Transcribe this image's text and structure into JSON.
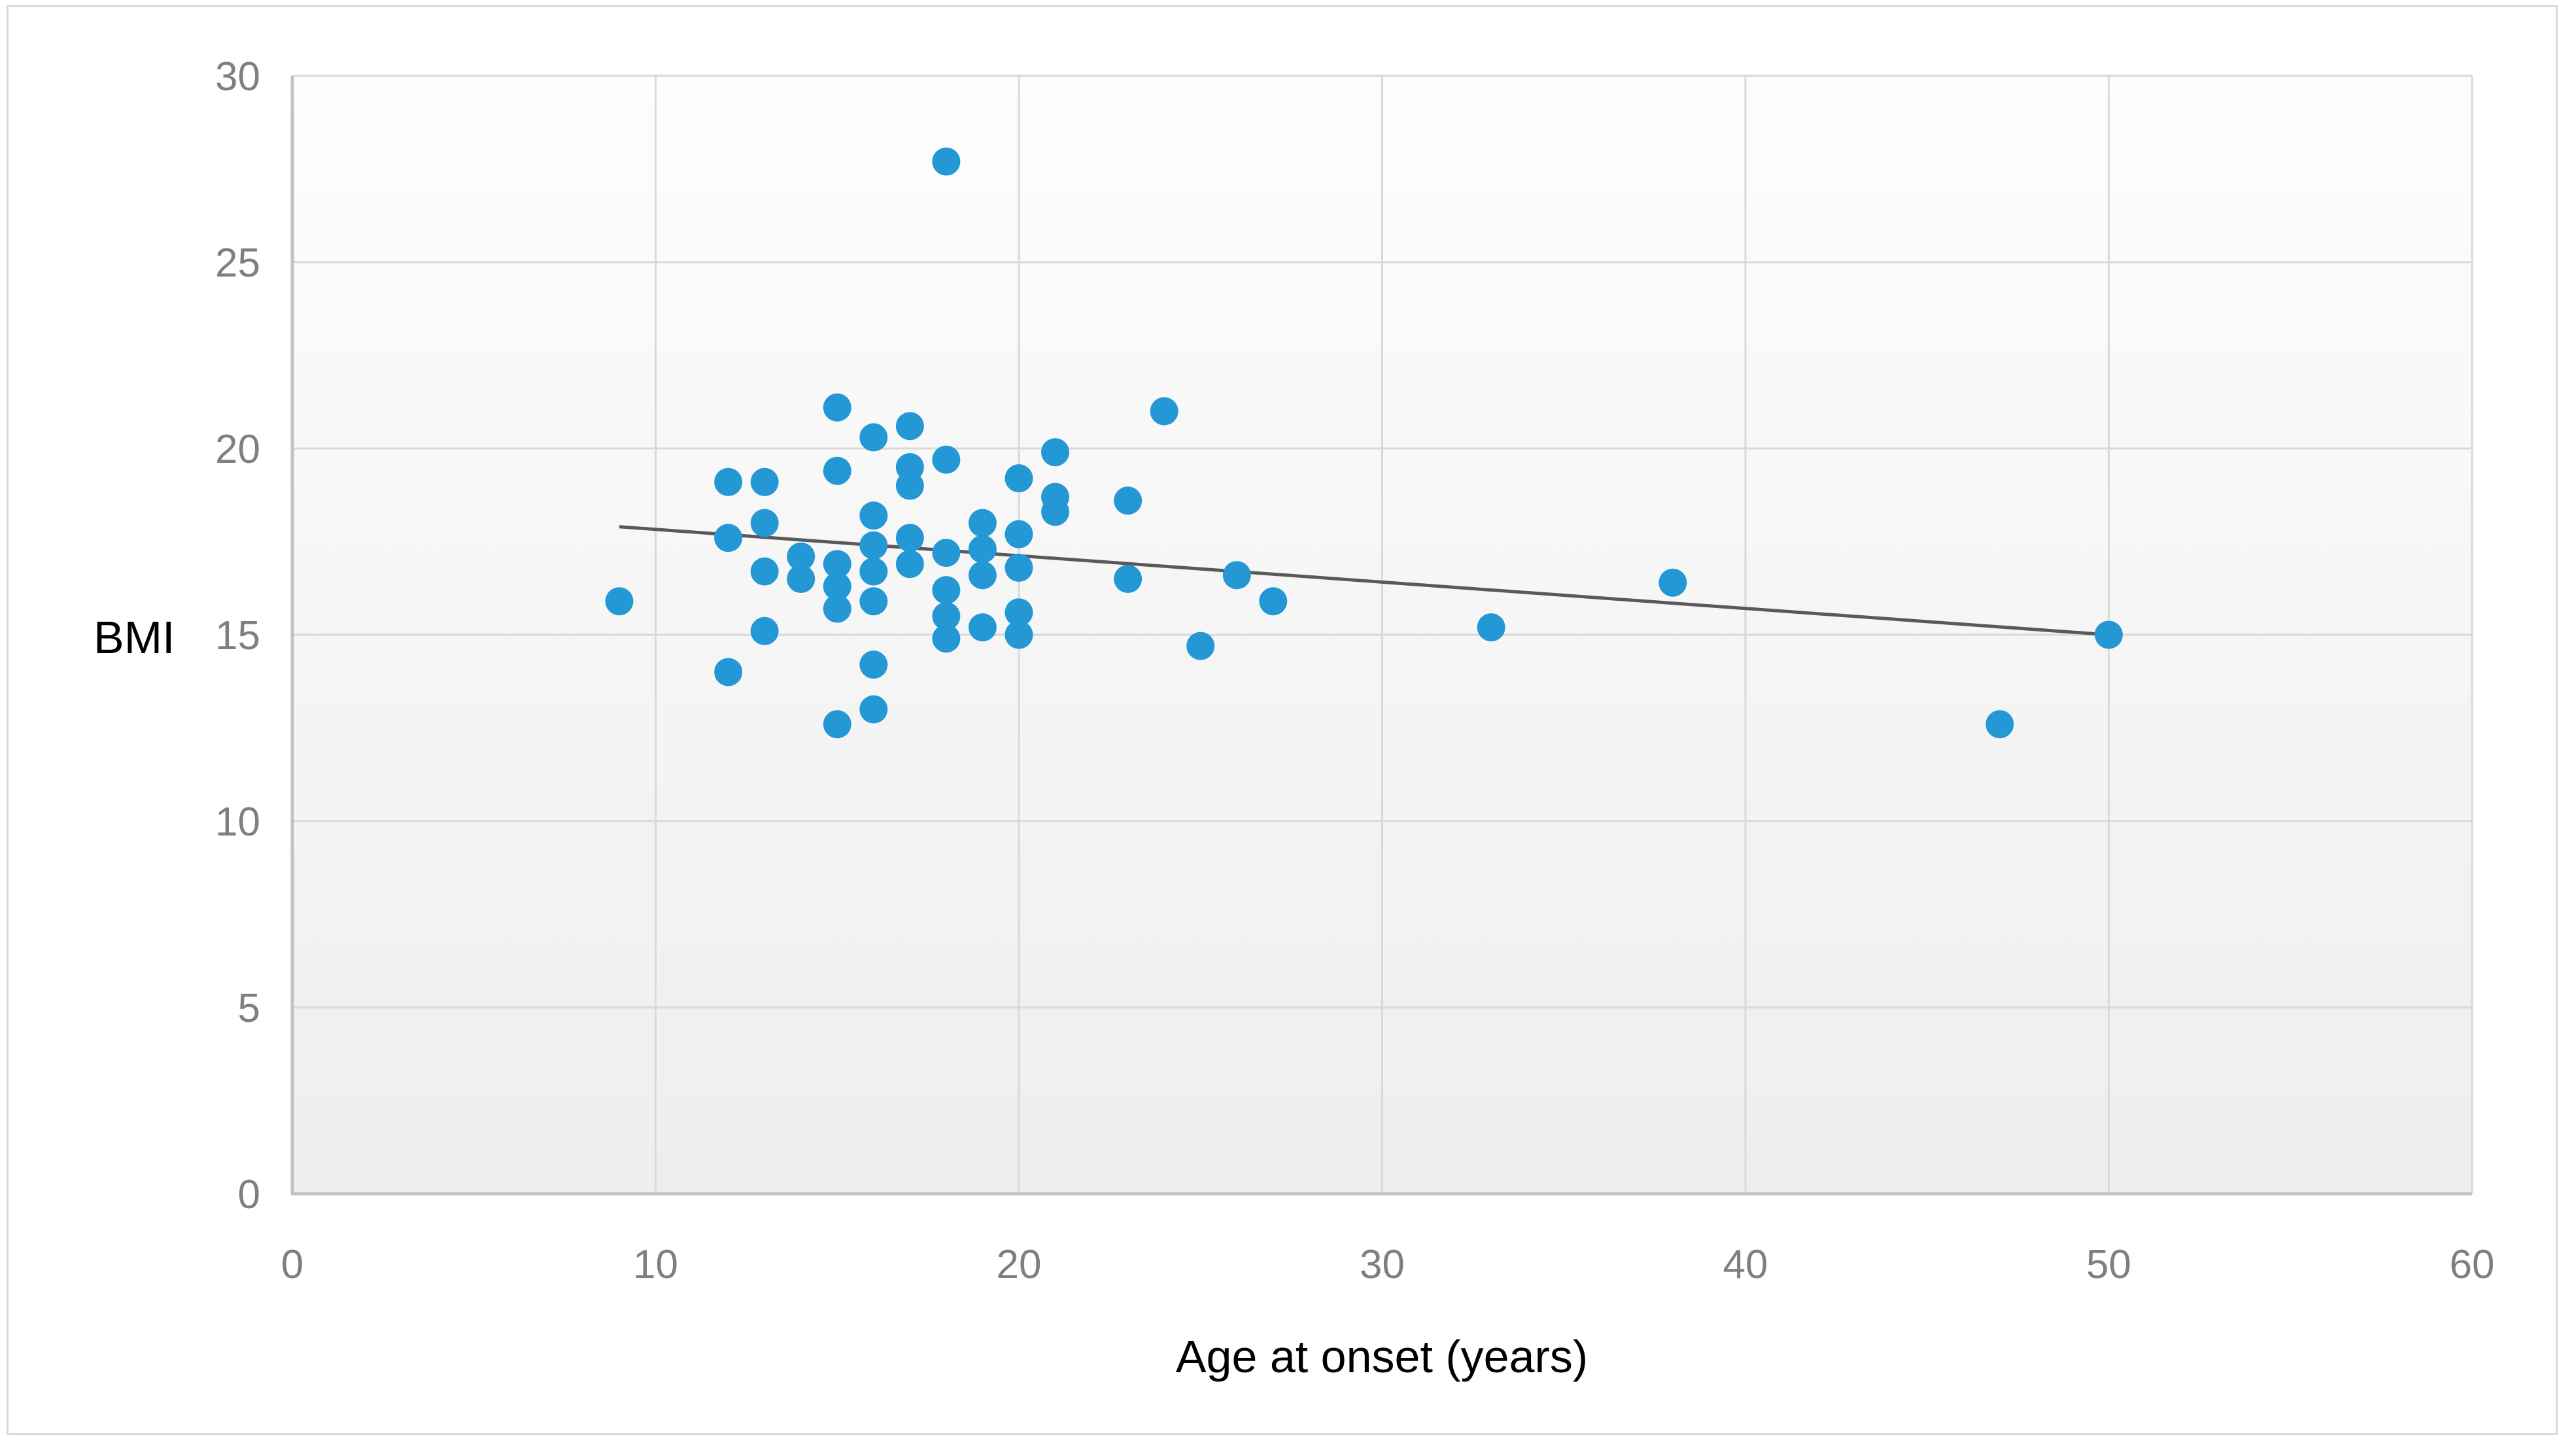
{
  "figure": {
    "background": "#ffffff",
    "border_color": "#d9d9d9"
  },
  "chart_data": {
    "type": "scatter",
    "title": "",
    "xlabel": "Age at onset (years)",
    "ylabel": "BMI",
    "xlim": [
      0,
      60
    ],
    "ylim": [
      0,
      30
    ],
    "x_ticks": [
      0,
      10,
      20,
      30,
      40,
      50,
      60
    ],
    "y_ticks": [
      0,
      5,
      10,
      15,
      20,
      25,
      30
    ],
    "grid": true,
    "legend": false,
    "point_color": "#2398d5",
    "gridline_color": "#d9d9d9",
    "axis_line_color": "#c2c2c2",
    "tick_label_color": "#7f7f7f",
    "plot_bg_top": "#fdfdfd",
    "plot_bg_bottom": "#eeeeee",
    "points": [
      [
        9,
        15.9
      ],
      [
        12,
        14.0
      ],
      [
        12,
        17.6
      ],
      [
        12,
        19.1
      ],
      [
        13,
        15.1
      ],
      [
        13,
        16.7
      ],
      [
        13,
        18.0
      ],
      [
        13,
        19.1
      ],
      [
        14,
        16.5
      ],
      [
        14,
        17.1
      ],
      [
        15,
        12.6
      ],
      [
        15,
        15.7
      ],
      [
        15,
        16.3
      ],
      [
        15,
        16.9
      ],
      [
        15,
        19.4
      ],
      [
        15,
        21.1
      ],
      [
        16,
        13.0
      ],
      [
        16,
        14.2
      ],
      [
        16,
        15.9
      ],
      [
        16,
        16.7
      ],
      [
        16,
        17.4
      ],
      [
        16,
        18.2
      ],
      [
        16,
        20.3
      ],
      [
        17,
        16.9
      ],
      [
        17,
        17.6
      ],
      [
        17,
        19.0
      ],
      [
        17,
        19.5
      ],
      [
        17,
        20.6
      ],
      [
        18,
        14.9
      ],
      [
        18,
        15.5
      ],
      [
        18,
        16.2
      ],
      [
        18,
        17.2
      ],
      [
        18,
        19.7
      ],
      [
        18,
        27.7
      ],
      [
        19,
        15.2
      ],
      [
        19,
        16.6
      ],
      [
        19,
        17.3
      ],
      [
        19,
        18.0
      ],
      [
        20,
        15.0
      ],
      [
        20,
        15.6
      ],
      [
        20,
        16.8
      ],
      [
        20,
        17.7
      ],
      [
        20,
        19.2
      ],
      [
        21,
        18.3
      ],
      [
        21,
        18.7
      ],
      [
        21,
        19.9
      ],
      [
        23,
        16.5
      ],
      [
        23,
        18.6
      ],
      [
        24,
        21.0
      ],
      [
        25,
        14.7
      ],
      [
        26,
        16.6
      ],
      [
        27,
        15.9
      ],
      [
        33,
        15.2
      ],
      [
        38,
        16.4
      ],
      [
        47,
        12.6
      ],
      [
        50,
        15.0
      ]
    ],
    "trendline": {
      "x1": 9,
      "y1": 17.9,
      "x2": 50,
      "y2": 15.0,
      "color": "#595959"
    }
  }
}
